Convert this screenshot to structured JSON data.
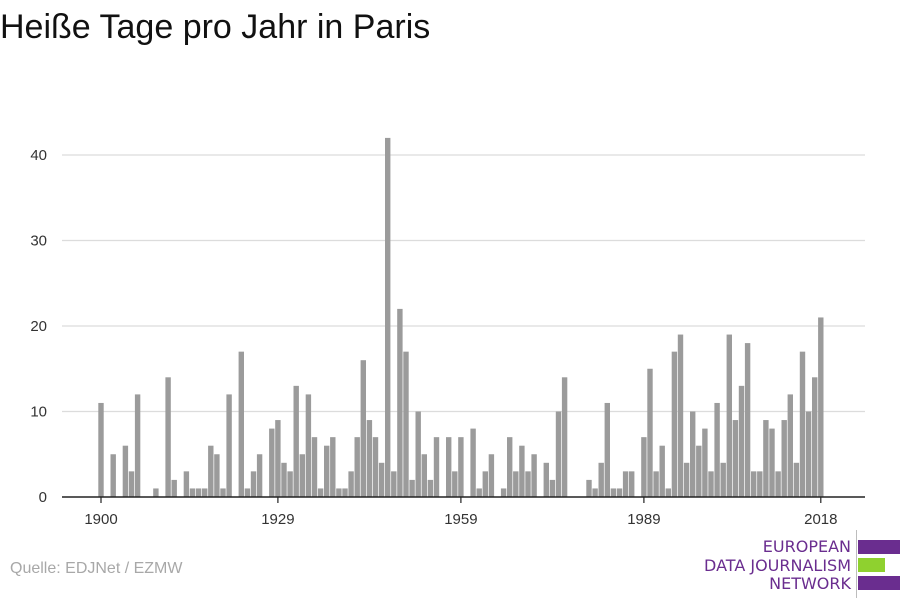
{
  "colors": {
    "bar": "#9b9b9b",
    "grid": "#dcdcdc",
    "axis": "#222222",
    "brand_purple": "#6a2d8f",
    "brand_green": "#8fd12f"
  },
  "chart_data": {
    "type": "bar",
    "title": "Heiße Tage pro Jahr in Paris",
    "xlabel": "",
    "ylabel": "",
    "xlim": [
      1900,
      2018
    ],
    "ylim": [
      0,
      44
    ],
    "xticks": [
      1900,
      1929,
      1959,
      1989,
      2018
    ],
    "yticks": [
      0,
      10,
      20,
      30,
      40
    ],
    "grid": true,
    "x": [
      1900,
      1901,
      1902,
      1903,
      1904,
      1905,
      1906,
      1907,
      1908,
      1909,
      1910,
      1911,
      1912,
      1913,
      1914,
      1915,
      1916,
      1917,
      1918,
      1919,
      1920,
      1921,
      1922,
      1923,
      1924,
      1925,
      1926,
      1927,
      1928,
      1929,
      1930,
      1931,
      1932,
      1933,
      1934,
      1935,
      1936,
      1937,
      1938,
      1939,
      1940,
      1941,
      1942,
      1943,
      1944,
      1945,
      1946,
      1947,
      1948,
      1949,
      1950,
      1951,
      1952,
      1953,
      1954,
      1955,
      1956,
      1957,
      1958,
      1959,
      1960,
      1961,
      1962,
      1963,
      1964,
      1965,
      1966,
      1967,
      1968,
      1969,
      1970,
      1971,
      1972,
      1973,
      1974,
      1975,
      1976,
      1977,
      1978,
      1979,
      1980,
      1981,
      1982,
      1983,
      1984,
      1985,
      1986,
      1987,
      1988,
      1989,
      1990,
      1991,
      1992,
      1993,
      1994,
      1995,
      1996,
      1997,
      1998,
      1999,
      2000,
      2001,
      2002,
      2003,
      2004,
      2005,
      2006,
      2007,
      2008,
      2009,
      2010,
      2011,
      2012,
      2013,
      2014,
      2015,
      2016,
      2017,
      2018
    ],
    "values": [
      11,
      0,
      5,
      0,
      6,
      3,
      12,
      0,
      0,
      1,
      0,
      14,
      2,
      0,
      3,
      1,
      1,
      1,
      6,
      5,
      1,
      12,
      0,
      17,
      1,
      3,
      5,
      0,
      8,
      9,
      4,
      3,
      13,
      5,
      12,
      7,
      1,
      6,
      7,
      1,
      1,
      3,
      7,
      16,
      9,
      7,
      4,
      42,
      3,
      22,
      17,
      2,
      10,
      5,
      2,
      7,
      0,
      7,
      3,
      7,
      0,
      8,
      1,
      3,
      5,
      0,
      1,
      7,
      3,
      6,
      3,
      5,
      0,
      4,
      2,
      10,
      14,
      0,
      0,
      0,
      2,
      1,
      4,
      11,
      1,
      1,
      3,
      3,
      0,
      7,
      15,
      3,
      6,
      1,
      17,
      19,
      4,
      10,
      6,
      8,
      3,
      11,
      4,
      19,
      9,
      13,
      18,
      3,
      3,
      9,
      8,
      3,
      9,
      12,
      4,
      17,
      10,
      14,
      21
    ]
  },
  "source": "Quelle: EDJNet / EZMW",
  "logo": {
    "line1": "EUROPEAN",
    "line2": "DATA JOURNALISM",
    "line3": "NETWORK"
  }
}
